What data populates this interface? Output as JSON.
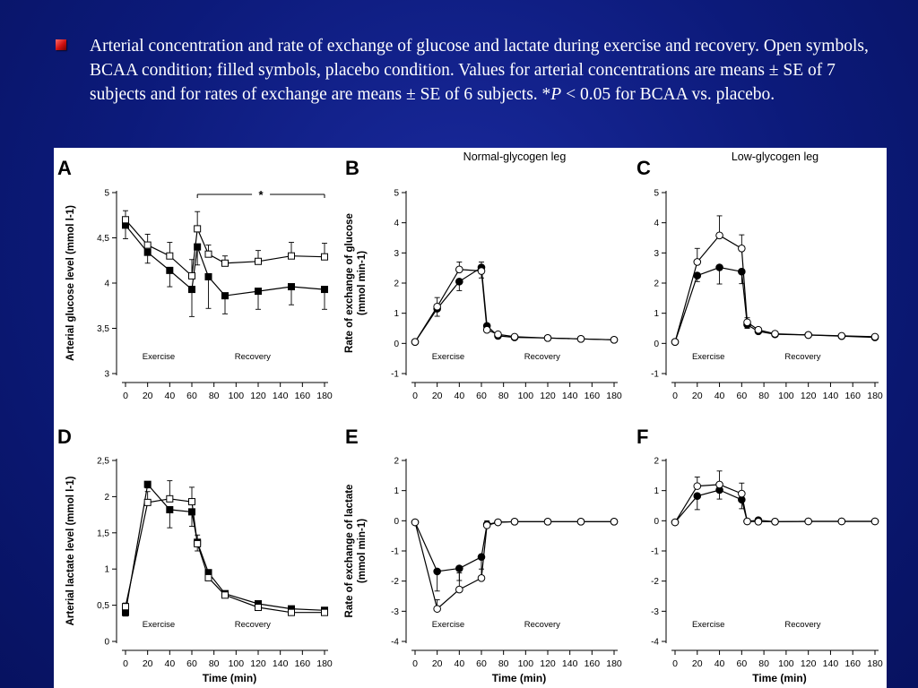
{
  "caption": {
    "part1": "Arterial concentration and rate of exchange of glucose and lactate during exercise and recovery. Open symbols, BCAA condition; filled symbols, placebo condition. Values for arterial concentrations are means ± SE of 7 subjects and for rates of exchange are means ± SE of 6 subjects. *",
    "p_letter": "P",
    "part2": " < 0.05 for BCAA vs. placebo."
  },
  "figure": {
    "xlabel": "Time (min)",
    "phase_exercise": "Exercise",
    "phase_recovery": "Recovery",
    "significance_mark": "*",
    "colors": {
      "axis": "#000000",
      "open_fill": "#ffffff",
      "filled_fill": "#000000"
    }
  },
  "chart_data": [
    {
      "panel": "A",
      "type": "line",
      "marker": "square",
      "title": "",
      "ylabel": "Arterial glucose level (mmol l-1)",
      "xlim": [
        0,
        180
      ],
      "ylim": [
        3,
        5
      ],
      "yticks": [
        3,
        3.5,
        4,
        4.5,
        5
      ],
      "ytick_labels": [
        "3",
        "3,5",
        "4",
        "4,5",
        "5"
      ],
      "series": [
        {
          "condition": "BCAA (open)",
          "open": true,
          "x": [
            0,
            20,
            40,
            60,
            65,
            75,
            90,
            120,
            150,
            180
          ],
          "y": [
            4.7,
            4.42,
            4.3,
            4.08,
            4.6,
            4.32,
            4.22,
            4.24,
            4.3,
            4.29
          ],
          "err": [
            0.1,
            0.12,
            0.15,
            0.18,
            0.19,
            0.1,
            0.08,
            0.12,
            0.15,
            0.15
          ]
        },
        {
          "condition": "Placebo (filled)",
          "open": false,
          "x": [
            0,
            20,
            40,
            60,
            65,
            75,
            90,
            120,
            150,
            180
          ],
          "y": [
            4.64,
            4.34,
            4.14,
            3.93,
            4.4,
            4.07,
            3.86,
            3.91,
            3.96,
            3.93
          ],
          "err": [
            0.15,
            0.12,
            0.18,
            0.3,
            0.2,
            0.35,
            0.2,
            0.2,
            0.2,
            0.22
          ]
        }
      ],
      "significance": {
        "x_from": 65,
        "x_to": 180,
        "y": 4.98
      }
    },
    {
      "panel": "B",
      "type": "line",
      "marker": "circle",
      "title": "Normal-glycogen leg",
      "ylabel": "Rate of exchange of glucose (mmol min-1)",
      "xlim": [
        0,
        180
      ],
      "ylim": [
        -1,
        5
      ],
      "yticks": [
        -1,
        0,
        1,
        2,
        3,
        4,
        5
      ],
      "ytick_labels": [
        "-1",
        "0",
        "1",
        "2",
        "3",
        "4",
        "5"
      ],
      "series": [
        {
          "condition": "BCAA (open)",
          "open": true,
          "x": [
            0,
            20,
            40,
            60,
            65,
            75,
            90,
            120,
            150,
            180
          ],
          "y": [
            0.05,
            1.22,
            2.45,
            2.4,
            0.45,
            0.3,
            0.22,
            0.18,
            0.15,
            0.12
          ],
          "err": [
            0,
            0.3,
            0.25,
            0.3,
            0.1,
            0,
            0,
            0,
            0,
            0
          ]
        },
        {
          "condition": "Placebo (filled)",
          "open": false,
          "x": [
            0,
            20,
            40,
            60,
            65,
            75,
            90,
            120,
            150,
            180
          ],
          "y": [
            0.05,
            1.15,
            2.05,
            2.52,
            0.58,
            0.25,
            0.2,
            0.18,
            0.15,
            0.12
          ],
          "err": [
            0,
            0.25,
            0.3,
            0.35,
            0.1,
            0,
            0,
            0,
            0,
            0
          ]
        }
      ]
    },
    {
      "panel": "C",
      "type": "line",
      "marker": "circle",
      "title": "Low-glycogen leg",
      "ylabel": "",
      "xlim": [
        0,
        180
      ],
      "ylim": [
        -1,
        5
      ],
      "yticks": [
        -1,
        0,
        1,
        2,
        3,
        4,
        5
      ],
      "ytick_labels": [
        "-1",
        "0",
        "1",
        "2",
        "3",
        "4",
        "5"
      ],
      "series": [
        {
          "condition": "BCAA (open)",
          "open": true,
          "x": [
            0,
            20,
            40,
            60,
            65,
            75,
            90,
            120,
            150,
            180
          ],
          "y": [
            0.05,
            2.7,
            3.58,
            3.15,
            0.7,
            0.45,
            0.32,
            0.28,
            0.25,
            0.22
          ],
          "err": [
            0,
            0.45,
            0.65,
            0.45,
            0.15,
            0,
            0,
            0,
            0,
            0
          ]
        },
        {
          "condition": "Placebo (filled)",
          "open": false,
          "x": [
            0,
            20,
            40,
            60,
            65,
            75,
            90,
            120,
            150,
            180
          ],
          "y": [
            0.05,
            2.25,
            2.52,
            2.38,
            0.62,
            0.4,
            0.3,
            0.28,
            0.24,
            0.2
          ],
          "err": [
            0,
            0.2,
            0.55,
            0.4,
            0.12,
            0,
            0,
            0,
            0,
            0
          ]
        }
      ]
    },
    {
      "panel": "D",
      "type": "line",
      "marker": "square",
      "title": "",
      "ylabel": "Arterial lactate level (mmol l-1)",
      "xlim": [
        0,
        180
      ],
      "ylim": [
        0,
        2.5
      ],
      "yticks": [
        0,
        0.5,
        1,
        1.5,
        2,
        2.5
      ],
      "ytick_labels": [
        "0",
        "0,5",
        "1",
        "1,5",
        "2",
        "2,5"
      ],
      "series": [
        {
          "condition": "BCAA (open)",
          "open": true,
          "x": [
            0,
            20,
            40,
            60,
            65,
            75,
            90,
            120,
            150,
            180
          ],
          "y": [
            0.48,
            1.92,
            1.97,
            1.93,
            1.35,
            0.88,
            0.64,
            0.47,
            0.4,
            0.4
          ],
          "err": [
            0.05,
            0.15,
            0.25,
            0.2,
            0.12,
            0.05,
            0.04,
            0.04,
            0.04,
            0.04
          ]
        },
        {
          "condition": "Placebo (filled)",
          "open": false,
          "x": [
            0,
            20,
            40,
            60,
            65,
            75,
            90,
            120,
            150,
            180
          ],
          "y": [
            0.4,
            2.17,
            1.82,
            1.79,
            1.37,
            0.95,
            0.66,
            0.52,
            0.45,
            0.43
          ],
          "err": [
            0.05,
            0.05,
            0.25,
            0.2,
            0.12,
            0.05,
            0.04,
            0.04,
            0.04,
            0.04
          ]
        }
      ]
    },
    {
      "panel": "E",
      "type": "line",
      "marker": "circle",
      "title": "",
      "ylabel": "Rate of exchange of lactate (mmol min-1)",
      "xlim": [
        0,
        180
      ],
      "ylim": [
        -4,
        2
      ],
      "yticks": [
        -4,
        -3,
        -2,
        -1,
        0,
        1,
        2
      ],
      "ytick_labels": [
        "-4",
        "-3",
        "-2",
        "-1",
        "0",
        "1",
        "2"
      ],
      "series": [
        {
          "condition": "BCAA (open)",
          "open": true,
          "x": [
            0,
            20,
            40,
            60,
            65,
            75,
            90,
            120,
            150,
            180
          ],
          "y": [
            -0.05,
            -2.92,
            -2.28,
            -1.9,
            -0.15,
            -0.05,
            -0.03,
            -0.03,
            -0.03,
            -0.03
          ],
          "err": [
            0,
            0.3,
            0.55,
            0.7,
            0.15,
            0,
            0,
            0,
            0,
            0
          ]
        },
        {
          "condition": "Placebo (filled)",
          "open": false,
          "x": [
            0,
            20,
            40,
            60,
            65,
            75,
            90,
            120,
            150,
            180
          ],
          "y": [
            -0.05,
            -1.68,
            -1.58,
            -1.2,
            -0.12,
            -0.05,
            -0.03,
            -0.03,
            -0.03,
            -0.03
          ],
          "err": [
            0,
            0.65,
            0.4,
            0.4,
            0.1,
            0,
            0,
            0,
            0,
            0
          ]
        }
      ]
    },
    {
      "panel": "F",
      "type": "line",
      "marker": "circle",
      "title": "",
      "ylabel": "",
      "xlim": [
        0,
        180
      ],
      "ylim": [
        -4,
        2
      ],
      "yticks": [
        -4,
        -3,
        -2,
        -1,
        0,
        1,
        2
      ],
      "ytick_labels": [
        "-4",
        "-3",
        "-2",
        "-1",
        "0",
        "1",
        "2"
      ],
      "series": [
        {
          "condition": "BCAA (open)",
          "open": true,
          "x": [
            0,
            20,
            40,
            60,
            65,
            75,
            90,
            120,
            150,
            180
          ],
          "y": [
            -0.05,
            1.15,
            1.2,
            0.9,
            -0.02,
            -0.03,
            -0.03,
            -0.02,
            -0.02,
            -0.02
          ],
          "err": [
            0,
            0.3,
            0.45,
            0.35,
            0,
            0,
            0,
            0,
            0,
            0
          ]
        },
        {
          "condition": "Placebo (filled)",
          "open": false,
          "x": [
            0,
            20,
            40,
            60,
            65,
            75,
            90,
            120,
            150,
            180
          ],
          "y": [
            -0.05,
            0.82,
            1.02,
            0.7,
            -0.02,
            0.02,
            -0.03,
            -0.02,
            -0.02,
            -0.02
          ],
          "err": [
            0,
            0.45,
            0.3,
            0.3,
            0,
            0,
            0,
            0,
            0,
            0
          ]
        }
      ]
    }
  ],
  "xticks": [
    0,
    20,
    40,
    60,
    80,
    100,
    120,
    140,
    160,
    180
  ]
}
